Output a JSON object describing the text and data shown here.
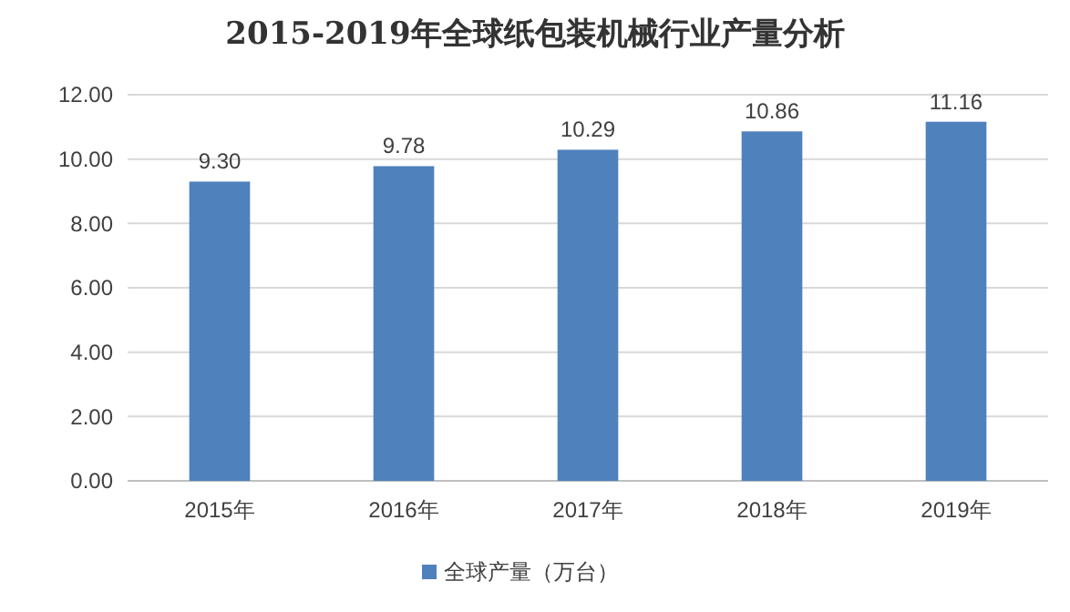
{
  "chart_data": {
    "type": "bar",
    "title": "2015-2019年全球纸包装机械行业产量分析",
    "categories": [
      "2015年",
      "2016年",
      "2017年",
      "2018年",
      "2019年"
    ],
    "series": [
      {
        "name": "全球产量（万台）",
        "color": "#4f81bd",
        "values": [
          9.3,
          9.78,
          10.29,
          10.86,
          11.16
        ]
      }
    ],
    "value_labels": [
      "9.30",
      "9.78",
      "10.29",
      "10.86",
      "11.16"
    ],
    "ylim": [
      0,
      12
    ],
    "yticks": [
      {
        "value": 0,
        "label": "0.00"
      },
      {
        "value": 2,
        "label": "2.00"
      },
      {
        "value": 4,
        "label": "4.00"
      },
      {
        "value": 6,
        "label": "6.00"
      },
      {
        "value": 8,
        "label": "8.00"
      },
      {
        "value": 10,
        "label": "10.00"
      },
      {
        "value": 12,
        "label": "12.00"
      }
    ],
    "grid": "y",
    "legend": "bottom"
  }
}
